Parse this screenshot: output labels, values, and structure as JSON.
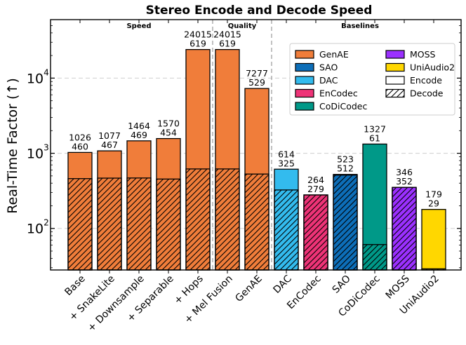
{
  "chart_data": {
    "type": "bar",
    "title": "Stereo Encode and Decode Speed",
    "ylabel": "Real-Time Factor (↑)",
    "xlabel": "",
    "yscale": "log",
    "ylim": [
      28,
      60000
    ],
    "y_ticks": [
      {
        "value": 100,
        "base": "10",
        "exp": "2"
      },
      {
        "value": 1000,
        "base": "10",
        "exp": "3"
      },
      {
        "value": 10000,
        "base": "10",
        "exp": "4"
      }
    ],
    "grid": true,
    "groups": [
      {
        "label": "Speed",
        "start": 0,
        "end": 4
      },
      {
        "label": "Quality",
        "start": 5,
        "end": 6
      },
      {
        "label": "Baselines",
        "start": 7,
        "end": 12
      }
    ],
    "categories": [
      "Base",
      "+ SnakeLite",
      "+ Downsample",
      "+ Separable",
      "+ Hops",
      "+ Mel Fusion",
      "GenAE",
      "DAC",
      "EnCodec",
      "SAO",
      "CoDiCodec",
      "MOSS",
      "UniAudio2"
    ],
    "series": [
      {
        "name": "Encode",
        "values": [
          1026,
          1077,
          1464,
          1570,
          24015,
          24015,
          7277,
          614,
          264,
          523,
          1327,
          346,
          179
        ]
      },
      {
        "name": "Decode",
        "values": [
          460,
          467,
          469,
          454,
          619,
          619,
          529,
          325,
          279,
          512,
          61,
          352,
          29
        ]
      }
    ],
    "bar_models": [
      "GenAE",
      "GenAE",
      "GenAE",
      "GenAE",
      "GenAE",
      "GenAE",
      "GenAE",
      "DAC",
      "EnCodec",
      "SAO",
      "CoDiCodec",
      "MOSS",
      "UniAudio2"
    ],
    "legend": {
      "position": "upper-right",
      "entries": [
        {
          "label": "GenAE",
          "color": "#F07D3A",
          "style": "solid"
        },
        {
          "label": "SAO",
          "color": "#0D6EB8",
          "style": "solid"
        },
        {
          "label": "DAC",
          "color": "#33BBEE",
          "style": "solid"
        },
        {
          "label": "EnCodec",
          "color": "#EE3377",
          "style": "solid"
        },
        {
          "label": "CoDiCodec",
          "color": "#009988",
          "style": "solid"
        },
        {
          "label": "MOSS",
          "color": "#9B30FF",
          "style": "solid"
        },
        {
          "label": "UniAudio2",
          "color": "#FFD700",
          "style": "solid"
        },
        {
          "label": "Encode",
          "color": "#ffffff",
          "style": "solid"
        },
        {
          "label": "Decode",
          "color": "#ffffff",
          "style": "hatch"
        }
      ]
    },
    "colors": {
      "GenAE": "#F07D3A",
      "SAO": "#0D6EB8",
      "DAC": "#33BBEE",
      "EnCodec": "#EE3377",
      "CoDiCodec": "#009988",
      "MOSS": "#9B30FF",
      "UniAudio2": "#FFD700"
    }
  }
}
